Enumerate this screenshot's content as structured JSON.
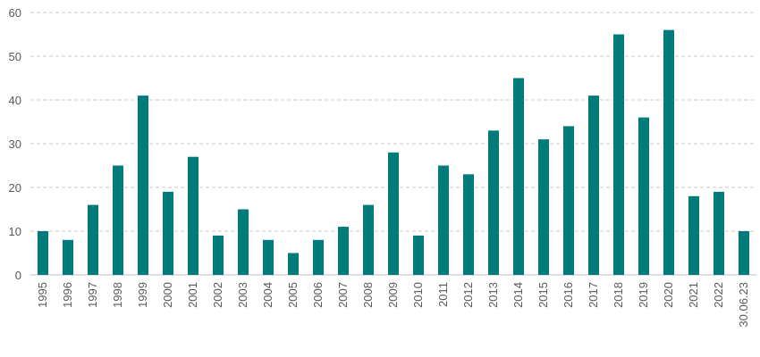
{
  "chart_data": {
    "type": "bar",
    "title": "",
    "xlabel": "",
    "ylabel": "",
    "categories": [
      "1995",
      "1996",
      "1997",
      "1998",
      "1999",
      "2000",
      "2001",
      "2002",
      "2003",
      "2004",
      "2005",
      "2006",
      "2007",
      "2008",
      "2009",
      "2010",
      "2011",
      "2012",
      "2013",
      "2014",
      "2015",
      "2016",
      "2017",
      "2018",
      "2019",
      "2020",
      "2021",
      "2022",
      "30.06.23"
    ],
    "values": [
      10,
      8,
      16,
      25,
      41,
      19,
      27,
      9,
      15,
      8,
      5,
      8,
      11,
      16,
      28,
      9,
      25,
      23,
      33,
      45,
      31,
      34,
      41,
      55,
      36,
      56,
      18,
      19,
      10
    ],
    "ylim": [
      0,
      60
    ],
    "yticks": [
      0,
      10,
      20,
      30,
      40,
      50,
      60
    ],
    "grid": true,
    "bar_color": "#007a7a",
    "grid_color": "#c8c8c8"
  }
}
